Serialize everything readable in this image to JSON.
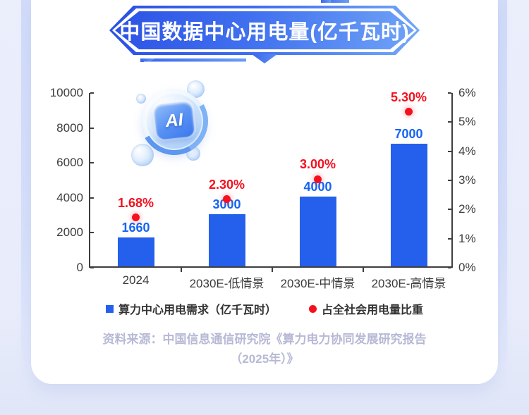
{
  "page": {
    "title": "中国数据中心用电量(亿千瓦时)",
    "ai_badge_text": "AI",
    "source_line1": "资料来源：中国信息通信研究院《算力电力协同发展研究报告",
    "source_line2": "（2025年）》"
  },
  "colors": {
    "bar_blue": "#2560ec",
    "value_label_blue": "#1465f4",
    "dot_red": "#f5101e",
    "axis_text": "#3d3d3d",
    "legend_text": "#333333",
    "banner_blue_start": "#2c52e5",
    "banner_blue_end": "#6fa3f7",
    "source_text": "#b7b9d5",
    "page_bg": "#e9edfb",
    "side_strip_blue": "#d4def9",
    "card_bg": "#ffffff"
  },
  "legend": {
    "items": [
      {
        "marker": "square",
        "color": "#2560ec",
        "label": "算力中心用电需求（亿千瓦时）"
      },
      {
        "marker": "dot",
        "color": "#f5101e",
        "label": "占全社会用电量比重"
      }
    ]
  },
  "chart_data": {
    "type": "bar",
    "title": "中国数据中心用电量(亿千瓦时)",
    "categories": [
      "2024",
      "2030E-低情景",
      "2030E-中情景",
      "2030E-高情景"
    ],
    "series": [
      {
        "name": "算力中心用电需求（亿千瓦时）",
        "type": "bar",
        "axis": "left",
        "values": [
          1660,
          3000,
          4000,
          7000
        ],
        "labels": [
          "1660",
          "3000",
          "4000",
          "7000"
        ],
        "color": "#2560ec",
        "label_color": "#1465f4"
      },
      {
        "name": "占全社会用电量比重",
        "type": "scatter",
        "axis": "right",
        "values": [
          1.68,
          2.3,
          3.0,
          5.3
        ],
        "labels": [
          "1.68%",
          "2.30%",
          "3.00%",
          "5.30%"
        ],
        "color": "#f5101e",
        "label_color": "#f5101e"
      }
    ],
    "left_axis": {
      "min": 0,
      "max": 10000,
      "ticks": [
        "10000",
        "8000",
        "6000",
        "4000",
        "2000",
        "0"
      ]
    },
    "right_axis": {
      "min": 0,
      "max": 6,
      "ticks": [
        "6%",
        "5%",
        "4%",
        "3%",
        "2%",
        "1%",
        "0%"
      ]
    },
    "grid": false,
    "legend_position": "bottom"
  }
}
